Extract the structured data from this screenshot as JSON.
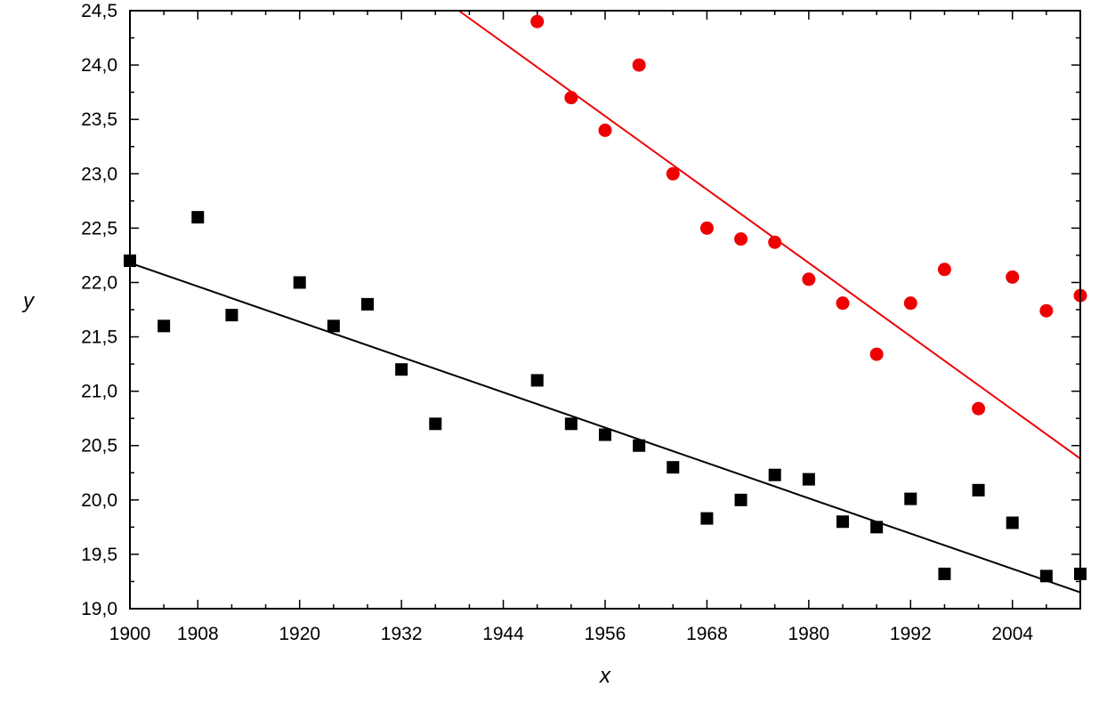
{
  "chart_data": {
    "type": "scatter",
    "title": "",
    "xlabel": "x",
    "ylabel": "y",
    "xlim": [
      1900,
      2012
    ],
    "ylim": [
      19.0,
      24.5
    ],
    "x_ticks": [
      1900,
      1908,
      1920,
      1932,
      1944,
      1956,
      1968,
      1980,
      1992,
      2004
    ],
    "y_ticks": [
      "19,0",
      "19,5",
      "20,0",
      "20,5",
      "21,0",
      "21,5",
      "22,0",
      "22,5",
      "23,0",
      "23,5",
      "24,0",
      "24,5"
    ],
    "grid": false,
    "series": [
      {
        "marker": "square",
        "color": "#000000",
        "x": [
          1900,
          1904,
          1908,
          1912,
          1920,
          1924,
          1928,
          1932,
          1936,
          1948,
          1952,
          1956,
          1960,
          1964,
          1968,
          1972,
          1976,
          1980,
          1984,
          1988,
          1992,
          1996,
          2000,
          2004,
          2008,
          2012
        ],
        "y": [
          22.2,
          21.6,
          22.6,
          21.7,
          22.0,
          21.6,
          21.8,
          21.2,
          20.7,
          21.1,
          20.7,
          20.6,
          20.5,
          20.3,
          19.83,
          20.0,
          20.23,
          20.19,
          19.8,
          19.75,
          20.01,
          19.32,
          20.09,
          19.79,
          19.3,
          19.32
        ],
        "fit": {
          "x": [
            1900,
            2012
          ],
          "y": [
            22.18,
            19.15
          ]
        }
      },
      {
        "marker": "circle",
        "color": "#ee0000",
        "x": [
          1948,
          1952,
          1956,
          1960,
          1964,
          1968,
          1972,
          1976,
          1980,
          1984,
          1988,
          1992,
          1996,
          2000,
          2004,
          2008,
          2012
        ],
        "y": [
          24.4,
          23.7,
          23.4,
          24.0,
          23.0,
          22.5,
          22.4,
          22.37,
          22.03,
          21.81,
          21.34,
          21.81,
          22.12,
          20.84,
          22.05,
          21.74,
          21.88
        ],
        "fit": {
          "x": [
            1938.76,
            2012
          ],
          "y": [
            24.5,
            20.38
          ]
        }
      }
    ]
  }
}
